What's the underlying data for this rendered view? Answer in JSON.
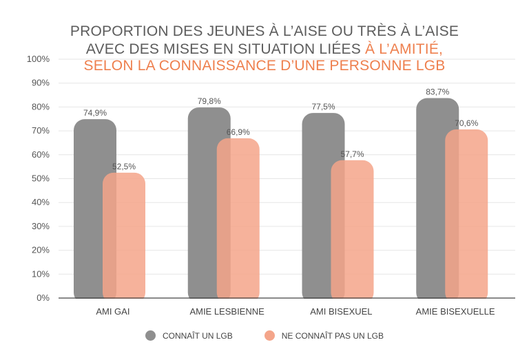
{
  "chart_data": {
    "type": "bar",
    "title_lines": [
      {
        "text": "PROPORTION DES JEUNES À L’AISE OU TRÈS À L’AISE",
        "accent": ""
      },
      {
        "text": "AVEC DES MISES EN SITUATION LIÉES ",
        "accent": "À L’AMITIÉ,"
      },
      {
        "text": "",
        "accent": "SELON LA CONNAISSANCE D’UNE PERSONNE LGB"
      }
    ],
    "categories": [
      "AMI GAI",
      "AMIE LESBIENNE",
      "AMI BISEXUEL",
      "AMIE BISEXUELLE"
    ],
    "series": [
      {
        "name": "CONNAÎT UN LGB",
        "color": "#8f8f8f",
        "values": [
          74.9,
          79.8,
          77.5,
          83.7
        ],
        "labels": [
          "74,9%",
          "79,8%",
          "77,5%",
          "83,7%"
        ]
      },
      {
        "name": "NE CONNAÎT PAS UN LGB",
        "color": "#f4a58a",
        "values": [
          52.5,
          66.9,
          57.7,
          70.6
        ],
        "labels": [
          "52,5%",
          "66,9%",
          "57,7%",
          "70,6%"
        ]
      }
    ],
    "ylim": [
      0,
      100
    ],
    "yticks": [
      0,
      10,
      20,
      30,
      40,
      50,
      60,
      70,
      80,
      90,
      100
    ],
    "ytick_labels": [
      "0%",
      "10%",
      "20%",
      "30%",
      "40%",
      "50%",
      "60%",
      "70%",
      "80%",
      "90%",
      "100%"
    ],
    "grid": true,
    "legend_position": "bottom",
    "accent_color": "#ee7f4d"
  }
}
